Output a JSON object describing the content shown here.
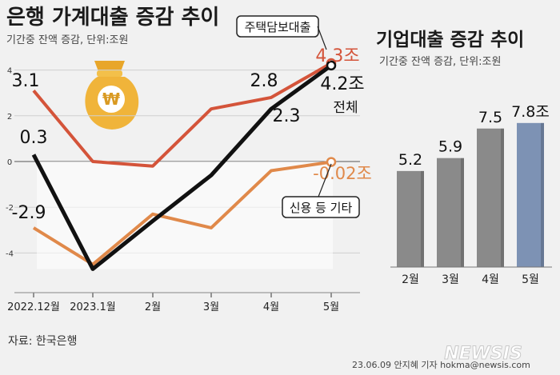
{
  "left": {
    "title": "은행 가계대출 증감 추이",
    "subtitle": "기간중 잔액 증감, 단위:조원",
    "source": "자료: 한국은행",
    "chart_data": {
      "type": "line",
      "categories": [
        "2022.12월",
        "2023.1월",
        "2월",
        "3월",
        "4월",
        "5월"
      ],
      "yticks": [
        "4",
        "2",
        "0",
        "-2",
        "-4"
      ],
      "ylim": [
        -5.6,
        4.4
      ],
      "series": [
        {
          "name": "주택담보대출",
          "color": "#d4543a",
          "values": [
            3.1,
            0.0,
            -0.2,
            2.3,
            2.8,
            4.3
          ],
          "labels": [
            "3.1",
            "",
            "",
            "",
            "2.8",
            "4.3조"
          ]
        },
        {
          "name": "전체",
          "color": "#111111",
          "values": [
            0.3,
            -4.7,
            -2.6,
            -0.6,
            2.3,
            4.2
          ],
          "labels": [
            "0.3",
            "",
            "",
            "",
            "2.3",
            "4.2조"
          ]
        },
        {
          "name": "신용 등 기타",
          "color": "#e0894a",
          "values": [
            -2.9,
            -4.5,
            -2.3,
            -2.9,
            -0.4,
            -0.02
          ],
          "labels": [
            "-2.9",
            "",
            "",
            "",
            "",
            "-0.02조"
          ]
        }
      ]
    }
  },
  "right": {
    "title": "기업대출 증감 추이",
    "subtitle": "기간중 잔액 증감, 단위:조원",
    "chart_data": {
      "type": "bar",
      "categories": [
        "2월",
        "3월",
        "4월",
        "5월"
      ],
      "values": [
        5.2,
        5.9,
        7.5,
        7.8
      ],
      "labels": [
        "5.2",
        "5.9",
        "7.5",
        "7.8조"
      ],
      "colors": [
        "#8a8a8a",
        "#8a8a8a",
        "#8a8a8a",
        "#7d92b4"
      ]
    }
  },
  "footer": {
    "credit": "23.06.09 안지혜 기자  hokma@newsis.com",
    "brand": "NEWSIS"
  }
}
